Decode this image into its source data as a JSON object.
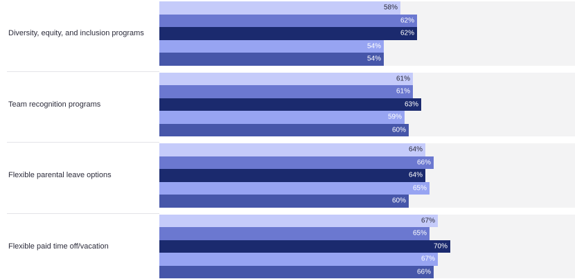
{
  "chart_data": {
    "type": "bar",
    "orientation": "horizontal",
    "categories": [
      "Diversity, equity, and inclusion programs",
      "Team recognition programs",
      "Flexible parental leave options",
      "Flexible paid time off/vacation"
    ],
    "series": [
      {
        "values": [
          58,
          61,
          64,
          67
        ],
        "color": "#c5cbfa",
        "label_color": "#2b2b3a"
      },
      {
        "values": [
          62,
          61,
          66,
          65
        ],
        "color": "#6b78d0",
        "label_color": "#ffffff"
      },
      {
        "values": [
          62,
          63,
          64,
          70
        ],
        "color": "#1b2a6e",
        "label_color": "#ffffff"
      },
      {
        "values": [
          54,
          59,
          65,
          67
        ],
        "color": "#97a4f2",
        "label_color": "#ffffff"
      },
      {
        "values": [
          54,
          60,
          60,
          66
        ],
        "color": "#4656a9",
        "label_color": "#ffffff"
      }
    ],
    "value_suffix": "%",
    "xlim": [
      0,
      100
    ],
    "title": "",
    "xlabel": "",
    "ylabel": "",
    "grid": false,
    "legend": "none"
  }
}
